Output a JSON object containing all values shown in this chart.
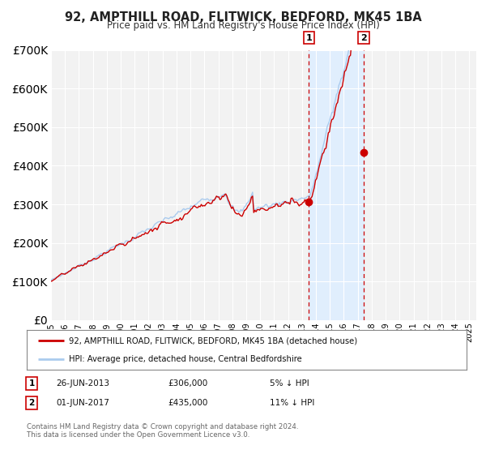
{
  "title": "92, AMPTHILL ROAD, FLITWICK, BEDFORD, MK45 1BA",
  "subtitle": "Price paid vs. HM Land Registry's House Price Index (HPI)",
  "background_color": "#ffffff",
  "plot_bg_color": "#f2f2f2",
  "grid_color": "#ffffff",
  "hpi_color": "#aacbee",
  "price_color": "#cc0000",
  "sale1_date": 2013.49,
  "sale1_price": 306000,
  "sale2_date": 2017.42,
  "sale2_price": 435000,
  "ylim": [
    0,
    700000
  ],
  "xlim_start": 1995.0,
  "xlim_end": 2025.5,
  "legend_label_red": "92, AMPTHILL ROAD, FLITWICK, BEDFORD, MK45 1BA (detached house)",
  "legend_label_blue": "HPI: Average price, detached house, Central Bedfordshire",
  "annotation1_date": "26-JUN-2013",
  "annotation1_price": "£306,000",
  "annotation1_pct": "5% ↓ HPI",
  "annotation2_date": "01-JUN-2017",
  "annotation2_price": "£435,000",
  "annotation2_pct": "11% ↓ HPI",
  "footer": "Contains HM Land Registry data © Crown copyright and database right 2024.\nThis data is licensed under the Open Government Licence v3.0."
}
